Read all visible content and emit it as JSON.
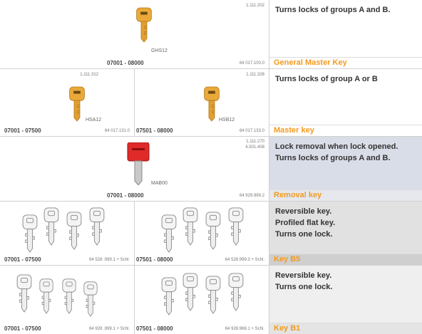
{
  "rows": [
    {
      "cells": [
        {
          "codes": [
            "1.111.202"
          ],
          "model": "GHS12",
          "range": "07001 - 08000",
          "article": "64 017.100.0"
        }
      ],
      "description": [
        "Turns locks of groups A and B."
      ],
      "name": "General Master Key"
    },
    {
      "cells": [
        {
          "codes": [
            "1.111.312"
          ],
          "model": "HSA12",
          "range": "07001 - 07500",
          "article": "64 017.131.0"
        },
        {
          "codes": [
            "1.111.326"
          ],
          "model": "HSB12",
          "range": "07501 - 08000",
          "article": "64 017.133.0"
        }
      ],
      "description": [
        "Turns locks of group A or B"
      ],
      "name": "Master key"
    },
    {
      "cells": [
        {
          "codes": [
            "1.111.270",
            "4.501.408"
          ],
          "model": "MAB00",
          "range": "07001 - 08000",
          "article": "64 929.999.2"
        }
      ],
      "description": [
        "Lock removal when  lock opened.",
        "Turns locks of groups A and B."
      ],
      "name": "Removal key"
    },
    {
      "cells": [
        {
          "range": "07001 - 07500",
          "article": "64 528 .999.1 + Schl."
        },
        {
          "range": "07501 - 08000",
          "article": "64 528.999.3 + Schl."
        }
      ],
      "description": [
        "Reversible key.",
        "Profiled flat key.",
        "Turns one lock."
      ],
      "name": "Key B5"
    },
    {
      "cells": [
        {
          "range": "07001 - 07500",
          "article": "64 928 .999.1 + Schl."
        },
        {
          "range": "07501 - 08000",
          "article": "64 928.966.1 + Schl."
        }
      ],
      "description": [
        "Reversible key.",
        "Turns one lock."
      ],
      "name": "Key B1"
    }
  ]
}
